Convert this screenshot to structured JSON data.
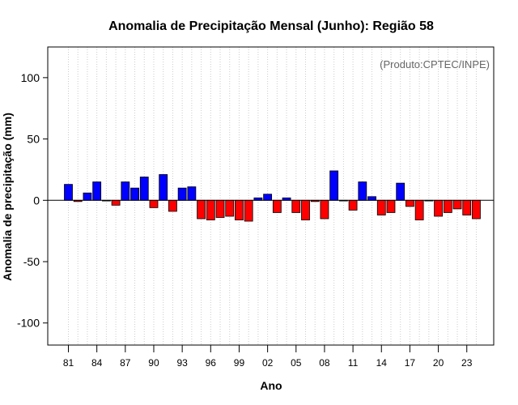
{
  "chart_data": {
    "type": "bar",
    "title": "Anomalia de Precipitação Mensal (Junho): Região 58",
    "xlabel": "Ano",
    "ylabel": "Anomalia de precipitação (mm)",
    "annotation": "(Produto:CPTEC/INPE)",
    "ylim": [
      -118,
      125
    ],
    "yticks": [
      -100,
      -50,
      0,
      50,
      100
    ],
    "xticks": [
      "81",
      "84",
      "87",
      "90",
      "93",
      "96",
      "99",
      "02",
      "05",
      "08",
      "11",
      "14",
      "17",
      "20",
      "23"
    ],
    "positive_color": "#0000ff",
    "negative_color": "#ff0000",
    "grid": true,
    "years": [
      1981,
      1982,
      1983,
      1984,
      1985,
      1986,
      1987,
      1988,
      1989,
      1990,
      1991,
      1992,
      1993,
      1994,
      1995,
      1996,
      1997,
      1998,
      1999,
      2000,
      2001,
      2002,
      2003,
      2004,
      2005,
      2006,
      2007,
      2008,
      2009,
      2010,
      2011,
      2012,
      2013,
      2014,
      2015,
      2016,
      2017,
      2018,
      2019,
      2020,
      2021,
      2022,
      2023,
      2024
    ],
    "values": [
      13,
      -1,
      6,
      15,
      0,
      -4,
      15,
      10,
      19,
      -6,
      21,
      -9,
      10,
      11,
      -15,
      -16,
      -14,
      -13,
      -16,
      -17,
      2,
      5,
      -10,
      2,
      -10,
      -16,
      -1,
      -15,
      24,
      0,
      -8,
      15,
      3,
      -12,
      -10,
      14,
      -5,
      -16,
      0,
      -13,
      -10,
      -7,
      -12,
      -15
    ]
  }
}
